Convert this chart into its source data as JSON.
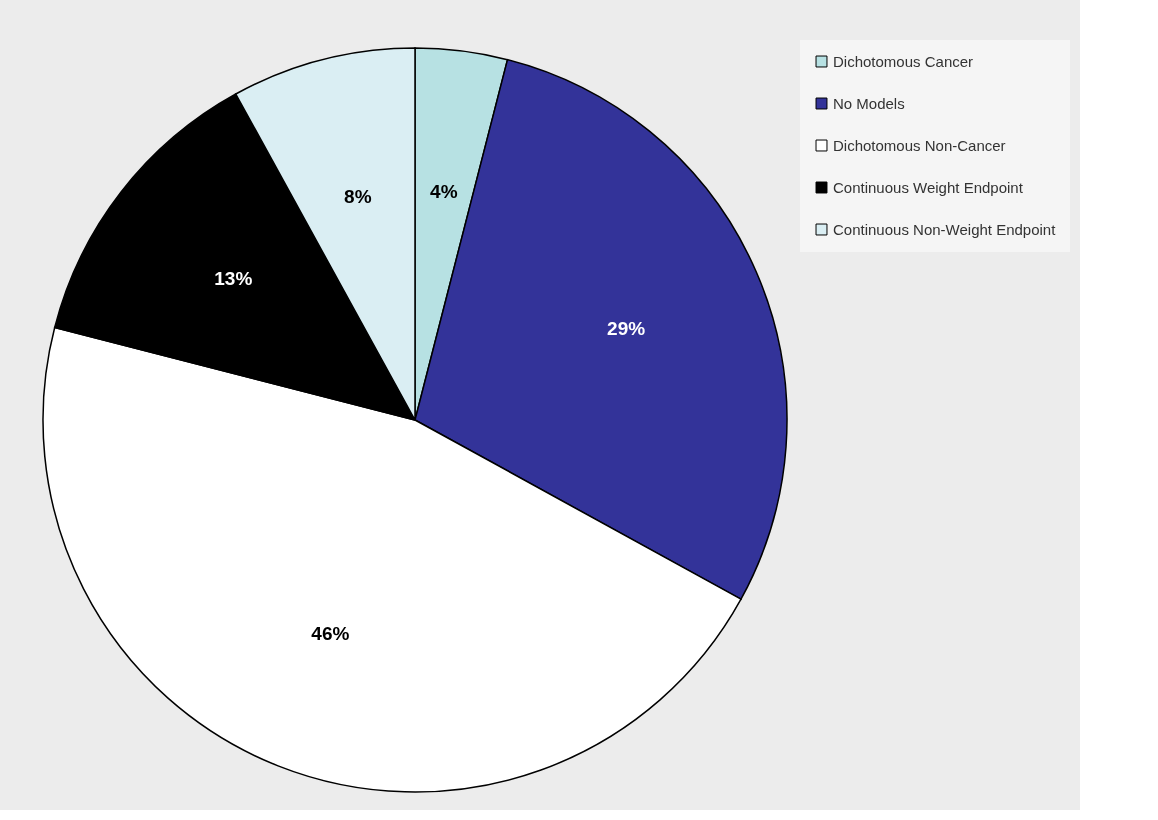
{
  "chart_data": {
    "type": "pie",
    "categories": [
      "Dichotomous Cancer",
      "No Models",
      "Dichotomous Non-Cancer",
      "Continuous Weight Endpoint",
      "Continuous Non-Weight Endpoint"
    ],
    "values": [
      4,
      29,
      46,
      13,
      8
    ],
    "colors": [
      "#b7e1e3",
      "#333399",
      "#ffffff",
      "#000000",
      "#daeef3"
    ],
    "value_labels": [
      "4%",
      "29%",
      "46%",
      "13%",
      "8%"
    ],
    "legend": "right"
  }
}
